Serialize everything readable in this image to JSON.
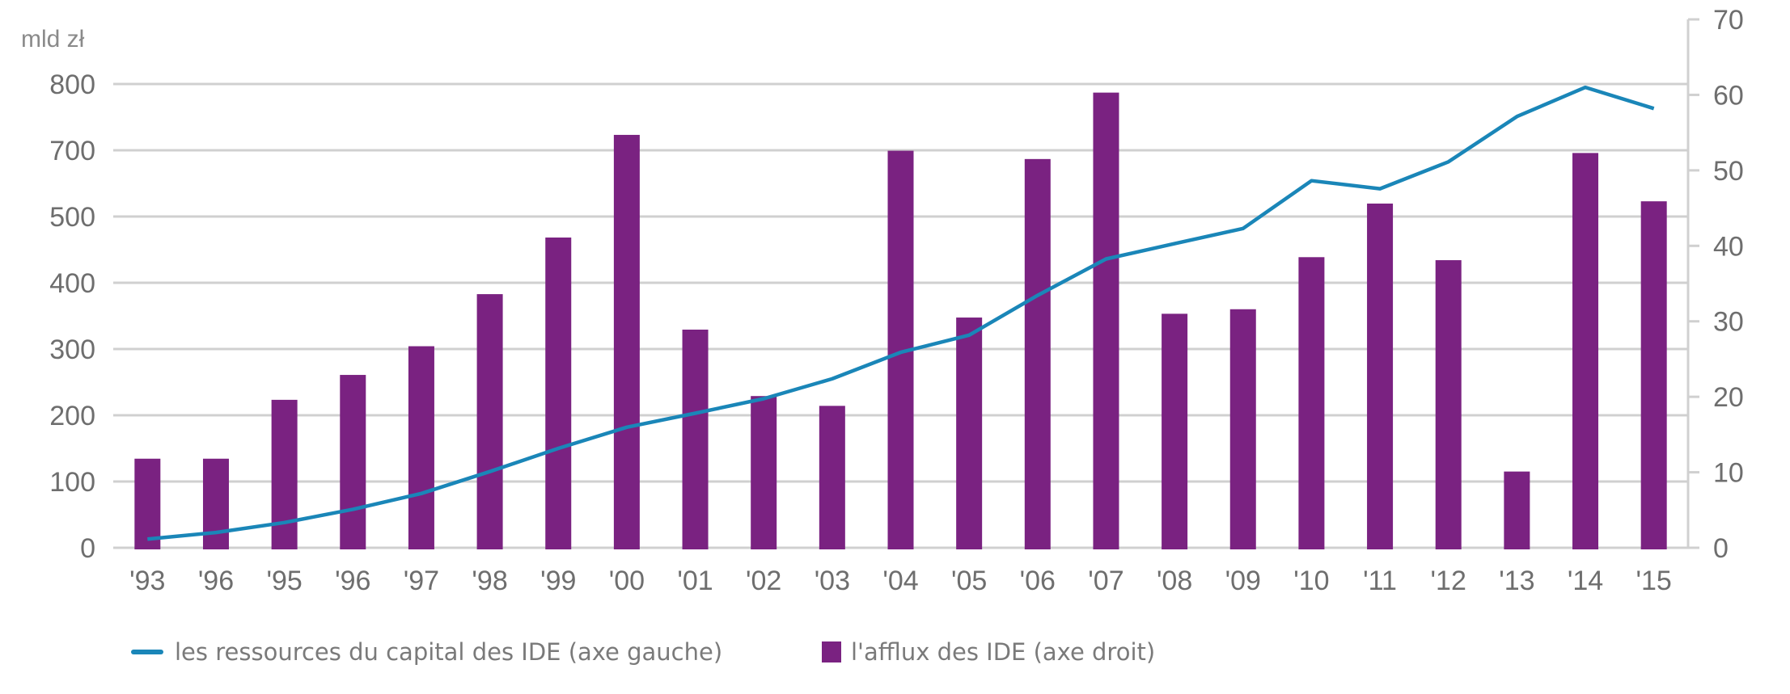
{
  "chart_data": {
    "type": "bar+line",
    "title": "",
    "left_axis": {
      "unit_label": "mld zł",
      "tick_labels": [
        "0",
        "100",
        "200",
        "300",
        "400",
        "500",
        "700",
        "800"
      ],
      "tick_values": [
        0,
        100,
        200,
        300,
        400,
        500,
        700,
        800
      ],
      "range": [
        0,
        800
      ]
    },
    "right_axis": {
      "tick_labels": [
        "0",
        "10",
        "20",
        "30",
        "40",
        "50",
        "60",
        "70"
      ],
      "tick_values": [
        0,
        10,
        20,
        30,
        40,
        50,
        60,
        70
      ],
      "range": [
        0,
        70
      ]
    },
    "grid": true,
    "categories": [
      "'93",
      "'96",
      "'95",
      "'96",
      "'97",
      "'98",
      "'99",
      "'00",
      "'01",
      "'02",
      "'03",
      "'04",
      "'05",
      "'06",
      "'07",
      "'08",
      "'09",
      "'10",
      "'11",
      "'12",
      "'13",
      "'14",
      "'15"
    ],
    "series": [
      {
        "name": "l'afflux des IDE (axe droit)",
        "type": "bar",
        "axis": "right",
        "color": "#7A2281",
        "values": [
          11.8,
          11.8,
          19.6,
          22.9,
          26.7,
          33.6,
          41.1,
          54.7,
          28.9,
          20.1,
          18.8,
          52.6,
          30.5,
          51.5,
          60.3,
          31.0,
          31.6,
          38.5,
          45.6,
          38.1,
          10.1,
          52.3,
          45.9
        ]
      },
      {
        "name": "les ressources du capital des IDE (axe gauche)",
        "type": "line",
        "axis": "left",
        "color": "#1A86B8",
        "values": [
          13,
          23,
          38,
          58,
          82,
          115,
          150,
          182,
          203,
          225,
          255,
          295,
          321,
          381,
          436,
          459,
          482,
          608,
          584,
          665,
          751,
          795,
          763
        ]
      }
    ],
    "legend": {
      "placement": "bottom",
      "items": [
        {
          "label": "les ressources du capital des IDE (axe gauche)",
          "symbol": "line",
          "color": "#1A86B8"
        },
        {
          "label": "l'afflux des IDE (axe droit)",
          "symbol": "box",
          "color": "#7A2281"
        }
      ]
    }
  }
}
